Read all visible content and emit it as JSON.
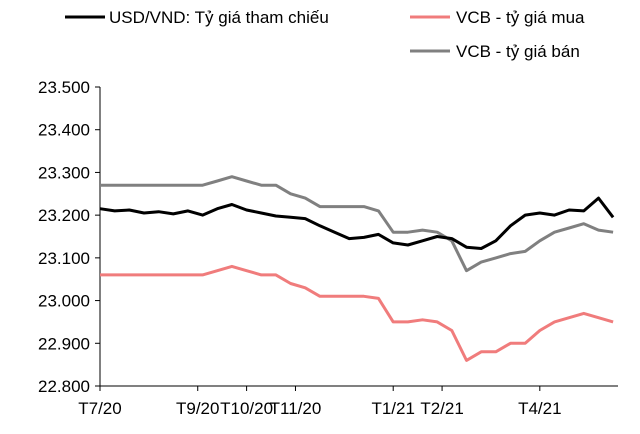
{
  "chart_data": {
    "type": "line",
    "title": "",
    "xlabel": "",
    "ylabel": "",
    "ylim": [
      22800,
      23500
    ],
    "yticks": [
      {
        "value": 22800,
        "label": "22.800"
      },
      {
        "value": 22900,
        "label": "22.900"
      },
      {
        "value": 23000,
        "label": "23.000"
      },
      {
        "value": 23100,
        "label": "23.100"
      },
      {
        "value": 23200,
        "label": "23.200"
      },
      {
        "value": 23300,
        "label": "23.300"
      },
      {
        "value": 23400,
        "label": "23.400"
      },
      {
        "value": 23500,
        "label": "23.500"
      }
    ],
    "x_range": [
      0,
      10.6
    ],
    "xticks": [
      {
        "value": 0,
        "label": "T7/20"
      },
      {
        "value": 2,
        "label": "T9/20"
      },
      {
        "value": 3,
        "label": "T10/20"
      },
      {
        "value": 4,
        "label": "T11/20"
      },
      {
        "value": 6,
        "label": "T1/21"
      },
      {
        "value": 7,
        "label": "T2/21"
      },
      {
        "value": 9,
        "label": "T4/21"
      }
    ],
    "legend": "top",
    "grid": false,
    "series": [
      {
        "name": "USD/VND: Tỷ giá tham chiếu",
        "color": "#000000",
        "x": [
          0,
          0.3,
          0.6,
          0.9,
          1.2,
          1.5,
          1.8,
          2.1,
          2.4,
          2.7,
          3.0,
          3.3,
          3.6,
          3.9,
          4.2,
          4.5,
          4.8,
          5.1,
          5.4,
          5.7,
          6.0,
          6.3,
          6.6,
          6.9,
          7.2,
          7.5,
          7.8,
          8.1,
          8.4,
          8.7,
          9.0,
          9.3,
          9.6,
          9.9,
          10.2,
          10.5
        ],
        "y": [
          23215,
          23210,
          23212,
          23205,
          23208,
          23203,
          23210,
          23200,
          23215,
          23225,
          23212,
          23205,
          23198,
          23195,
          23192,
          23175,
          23160,
          23145,
          23148,
          23155,
          23135,
          23130,
          23140,
          23150,
          23145,
          23125,
          23122,
          23140,
          23175,
          23200,
          23205,
          23200,
          23212,
          23210,
          23240,
          23195
        ]
      },
      {
        "name": "VCB - tỷ giá mua",
        "color": "#f07c7c",
        "x": [
          0,
          0.3,
          0.6,
          0.9,
          1.2,
          1.5,
          1.8,
          2.1,
          2.4,
          2.7,
          3.0,
          3.3,
          3.6,
          3.9,
          4.2,
          4.5,
          4.8,
          5.1,
          5.4,
          5.7,
          6.0,
          6.3,
          6.6,
          6.9,
          7.2,
          7.5,
          7.8,
          8.1,
          8.4,
          8.7,
          9.0,
          9.3,
          9.6,
          9.9,
          10.2,
          10.5
        ],
        "y": [
          23060,
          23060,
          23060,
          23060,
          23060,
          23060,
          23060,
          23060,
          23070,
          23080,
          23070,
          23060,
          23060,
          23040,
          23030,
          23010,
          23010,
          23010,
          23010,
          23005,
          22950,
          22950,
          22955,
          22950,
          22930,
          22860,
          22880,
          22880,
          22900,
          22900,
          22930,
          22950,
          22960,
          22970,
          22960,
          22950
        ]
      },
      {
        "name": "VCB - tỷ giá bán",
        "color": "#808080",
        "x": [
          0,
          0.3,
          0.6,
          0.9,
          1.2,
          1.5,
          1.8,
          2.1,
          2.4,
          2.7,
          3.0,
          3.3,
          3.6,
          3.9,
          4.2,
          4.5,
          4.8,
          5.1,
          5.4,
          5.7,
          6.0,
          6.3,
          6.6,
          6.9,
          7.2,
          7.5,
          7.8,
          8.1,
          8.4,
          8.7,
          9.0,
          9.3,
          9.6,
          9.9,
          10.2,
          10.5
        ],
        "y": [
          23270,
          23270,
          23270,
          23270,
          23270,
          23270,
          23270,
          23270,
          23280,
          23290,
          23280,
          23270,
          23270,
          23250,
          23240,
          23220,
          23220,
          23220,
          23220,
          23210,
          23160,
          23160,
          23165,
          23160,
          23140,
          23070,
          23090,
          23100,
          23110,
          23115,
          23140,
          23160,
          23170,
          23180,
          23165,
          23160
        ]
      }
    ]
  }
}
